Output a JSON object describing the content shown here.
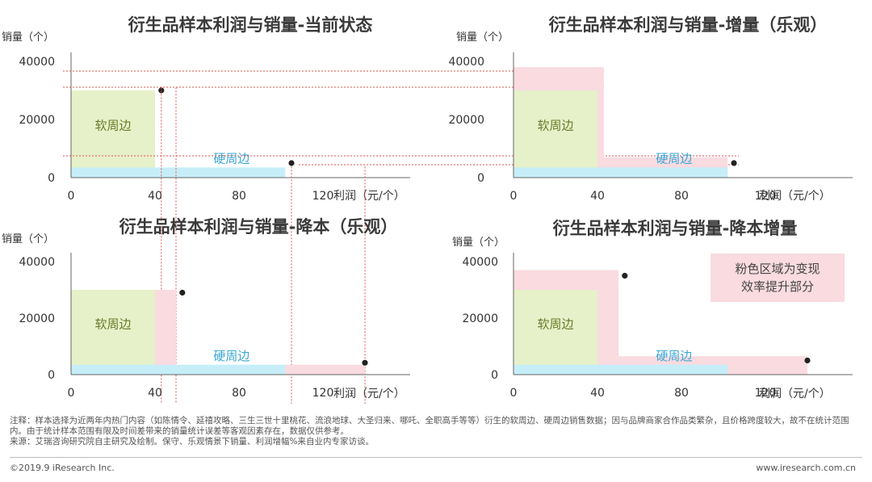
{
  "colors": {
    "soft_fill": "#e6f1c9",
    "hard_fill": "#c6eef8",
    "increase_fill": "#f9dbe0",
    "guide_line": "#e05050",
    "axis": "#666666",
    "point": "#222222"
  },
  "legend_note": [
    "粉色区域为变现",
    "效率提升部分"
  ],
  "notes": [
    "注释：样本选择为近两年内热门内容（如陈情令、延禧攻略、三生三世十里桃花、流浪地球、大圣归来、哪吒、全职高手等等）衍生的软周边、硬周边销售数据；因与品牌商家合作品类繁杂，且价格跨度较大，故不在统计范围内。由于统计样本范围有限及时间差带来的销量统计误差等客观因素存在，数据仅供参考。",
    "来源：艾瑞咨询研究院自主研究及绘制。保守、乐观情景下销量、利润增幅%来自业内专家访谈。"
  ],
  "footer": {
    "copyright": "©2019.9 iResearch Inc.",
    "website": "www.iresearch.com.cn"
  },
  "chart_data": [
    {
      "type": "area",
      "title": "衍生品样本利润与销量-当前状态",
      "ylabel": "销量（个）",
      "xlabel": "利润（元/个）",
      "x_ticks": [
        "0",
        "40",
        "80",
        "120"
      ],
      "y_ticks": [
        "0",
        "20000",
        "40000"
      ],
      "xlim": [
        0,
        150
      ],
      "ylim": [
        0,
        42000
      ],
      "grid": false,
      "regions": [
        {
          "label": "软周边",
          "x_from": 0,
          "x_to": 40,
          "y": 30000,
          "kind": "soft"
        },
        {
          "label": "硬周边",
          "x_from": 0,
          "x_to": 102,
          "y": 3500,
          "kind": "hard"
        }
      ],
      "points": [
        {
          "x": 43,
          "y": 30000
        },
        {
          "x": 105,
          "y": 5000
        }
      ]
    },
    {
      "type": "area",
      "title": "衍生品样本利润与销量-增量（乐观）",
      "ylabel": "销量（个）",
      "xlabel": "利润（元/个）",
      "x_ticks": [
        "0",
        "40",
        "80",
        "120"
      ],
      "y_ticks": [
        "0",
        "20000",
        "40000"
      ],
      "xlim": [
        0,
        150
      ],
      "ylim": [
        0,
        42000
      ],
      "grid": false,
      "regions": [
        {
          "label": "",
          "x_from": 0,
          "x_to": 43,
          "y": 38000,
          "kind": "increase"
        },
        {
          "label": "",
          "x_from": 0,
          "x_to": 102,
          "y": 7000,
          "kind": "increase"
        },
        {
          "label": "软周边",
          "x_from": 0,
          "x_to": 40,
          "y": 30000,
          "kind": "soft"
        },
        {
          "label": "硬周边",
          "x_from": 0,
          "x_to": 102,
          "y": 3500,
          "kind": "hard"
        }
      ],
      "points": [
        {
          "x": 105,
          "y": 5000
        }
      ]
    },
    {
      "type": "area",
      "title": "衍生品样本利润与销量-降本（乐观）",
      "ylabel": "销量（个）",
      "xlabel": "利润（元/个）",
      "x_ticks": [
        "0",
        "40",
        "80",
        "120"
      ],
      "y_ticks": [
        "0",
        "20000",
        "40000"
      ],
      "xlim": [
        0,
        150
      ],
      "ylim": [
        0,
        42000
      ],
      "grid": false,
      "regions": [
        {
          "label": "",
          "x_from": 40,
          "x_to": 50,
          "y": 30000,
          "kind": "increase"
        },
        {
          "label": "",
          "x_from": 102,
          "x_to": 140,
          "y": 3500,
          "kind": "increase"
        },
        {
          "label": "软周边",
          "x_from": 0,
          "x_to": 40,
          "y": 30000,
          "kind": "soft"
        },
        {
          "label": "硬周边",
          "x_from": 0,
          "x_to": 102,
          "y": 3500,
          "kind": "hard"
        }
      ],
      "points": [
        {
          "x": 53,
          "y": 29000
        },
        {
          "x": 140,
          "y": 4200
        }
      ]
    },
    {
      "type": "area",
      "title": "衍生品样本利润与销量-降本增量",
      "ylabel": "销量（个）",
      "xlabel": "利润（元/个）",
      "x_ticks": [
        "0",
        "40",
        "80",
        "120"
      ],
      "y_ticks": [
        "0",
        "20000",
        "40000"
      ],
      "xlim": [
        0,
        150
      ],
      "ylim": [
        0,
        42000
      ],
      "grid": false,
      "regions": [
        {
          "label": "",
          "x_from": 0,
          "x_to": 50,
          "y": 37000,
          "kind": "increase"
        },
        {
          "label": "",
          "x_from": 0,
          "x_to": 140,
          "y": 6500,
          "kind": "increase"
        },
        {
          "label": "软周边",
          "x_from": 0,
          "x_to": 40,
          "y": 30000,
          "kind": "soft"
        },
        {
          "label": "硬周边",
          "x_from": 0,
          "x_to": 102,
          "y": 3500,
          "kind": "hard"
        }
      ],
      "points": [
        {
          "x": 53,
          "y": 35000
        },
        {
          "x": 140,
          "y": 5000
        }
      ]
    }
  ]
}
